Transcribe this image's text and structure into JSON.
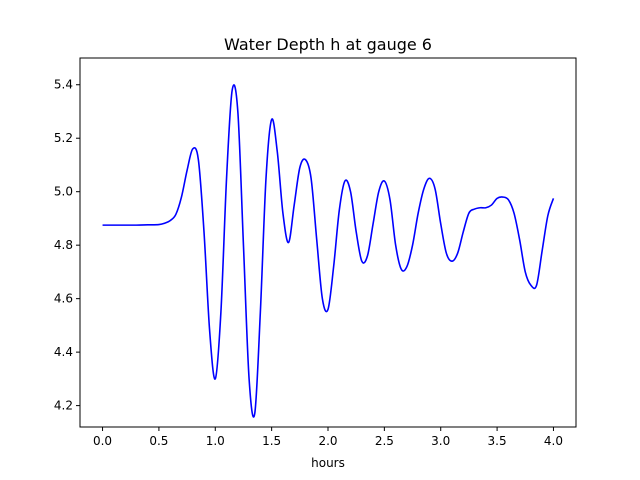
{
  "chart_data": {
    "type": "line",
    "title": "Water Depth h at gauge 6",
    "xlabel": "hours",
    "ylabel": "",
    "xlim": [
      -0.2,
      4.2
    ],
    "ylim": [
      4.12,
      5.5
    ],
    "x_ticks": [
      0.0,
      0.5,
      1.0,
      1.5,
      2.0,
      2.5,
      3.0,
      3.5,
      4.0
    ],
    "x_tick_labels": [
      "0.0",
      "0.5",
      "1.0",
      "1.5",
      "2.0",
      "2.5",
      "3.0",
      "3.5",
      "4.0"
    ],
    "y_ticks": [
      4.2,
      4.4,
      4.6,
      4.8,
      5.0,
      5.2,
      5.4
    ],
    "y_tick_labels": [
      "4.2",
      "4.4",
      "4.6",
      "4.8",
      "5.0",
      "5.2",
      "5.4"
    ],
    "grid": false,
    "legend": "none",
    "series": [
      {
        "color": "#0000ff",
        "x": [
          0.0,
          0.1,
          0.2,
          0.3,
          0.4,
          0.5,
          0.55,
          0.6,
          0.65,
          0.7,
          0.75,
          0.8,
          0.85,
          0.9,
          0.95,
          1.0,
          1.05,
          1.1,
          1.15,
          1.2,
          1.25,
          1.3,
          1.35,
          1.4,
          1.45,
          1.5,
          1.55,
          1.6,
          1.65,
          1.7,
          1.75,
          1.8,
          1.85,
          1.9,
          1.95,
          2.0,
          2.05,
          2.1,
          2.15,
          2.2,
          2.25,
          2.3,
          2.35,
          2.4,
          2.45,
          2.5,
          2.55,
          2.6,
          2.65,
          2.7,
          2.75,
          2.8,
          2.85,
          2.9,
          2.95,
          3.0,
          3.05,
          3.1,
          3.15,
          3.2,
          3.25,
          3.3,
          3.35,
          3.4,
          3.45,
          3.5,
          3.55,
          3.6,
          3.65,
          3.7,
          3.75,
          3.8,
          3.85,
          3.9,
          3.95,
          4.0
        ],
        "y": [
          4.875,
          4.875,
          4.875,
          4.875,
          4.876,
          4.877,
          4.882,
          4.892,
          4.915,
          4.98,
          5.08,
          5.16,
          5.12,
          4.85,
          4.48,
          4.3,
          4.55,
          5.05,
          5.38,
          5.3,
          4.8,
          4.3,
          4.17,
          4.55,
          5.05,
          5.27,
          5.15,
          4.92,
          4.81,
          4.95,
          5.09,
          5.12,
          5.05,
          4.82,
          4.6,
          4.56,
          4.72,
          4.93,
          5.04,
          5.0,
          4.85,
          4.74,
          4.76,
          4.88,
          5.0,
          5.04,
          4.97,
          4.8,
          4.71,
          4.72,
          4.8,
          4.92,
          5.01,
          5.05,
          5.01,
          4.88,
          4.77,
          4.74,
          4.77,
          4.85,
          4.92,
          4.935,
          4.94,
          4.94,
          4.95,
          4.975,
          4.98,
          4.97,
          4.92,
          4.82,
          4.7,
          4.65,
          4.65,
          4.78,
          4.91,
          4.975
        ]
      }
    ]
  }
}
